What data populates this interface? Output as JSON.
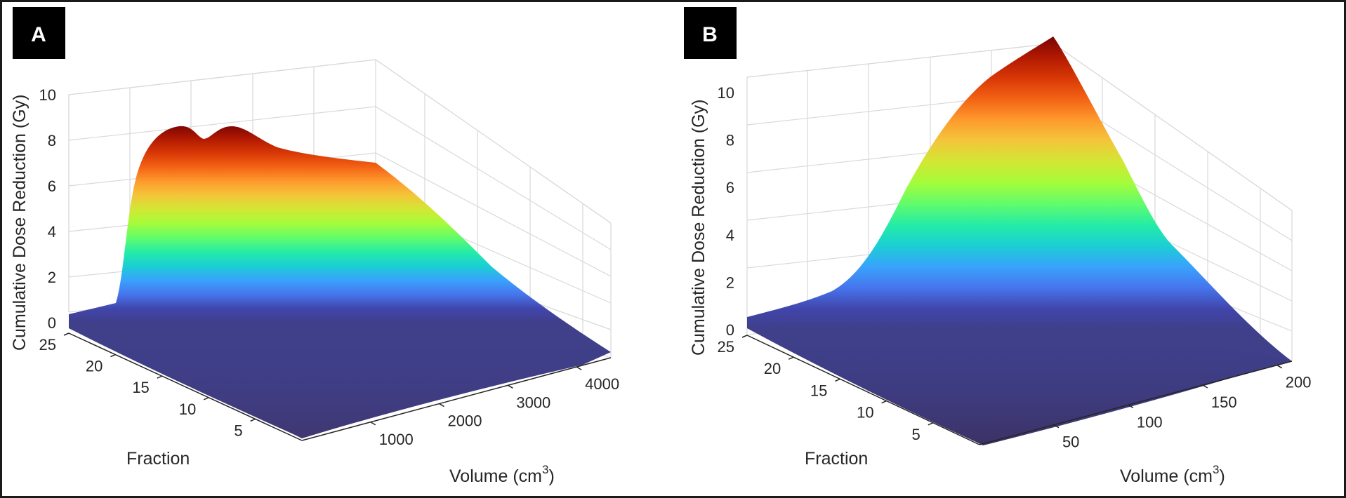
{
  "chart_data": [
    {
      "type": "surface",
      "panel_label": "A",
      "xlabel": "Volume (cm",
      "xlabel_sup": "3",
      "xlabel_close": ")",
      "ylabel": "Fraction",
      "zlabel": "Cumulative Dose Reduction (Gy)",
      "xlim": [
        0,
        4500
      ],
      "ylim": [
        0,
        25
      ],
      "zlim": [
        0,
        10
      ],
      "x_ticks": [
        1000,
        2000,
        3000,
        4000
      ],
      "y_ticks": [
        5,
        10,
        15,
        20,
        25
      ],
      "z_ticks": [
        0,
        2,
        4,
        6,
        8,
        10
      ],
      "x_tick_labels": [
        "1000",
        "2000",
        "3000",
        "4000"
      ],
      "y_tick_labels": [
        "5",
        "10",
        "15",
        "20",
        "25"
      ],
      "z_tick_labels": [
        "0",
        "2",
        "4",
        "6",
        "8",
        "10"
      ],
      "colormap": "turbo",
      "grid": true,
      "cumulative_dose_at_final_fraction": {
        "volume": [
          0,
          250,
          500,
          750,
          1000,
          1250,
          1500,
          1750,
          2000,
          2250,
          2500,
          2750,
          3000,
          3250,
          3500,
          3750,
          4000,
          4250,
          4500
        ],
        "dose": [
          0.5,
          0.6,
          8.3,
          7.9,
          8.3,
          7.8,
          7.4,
          7.3,
          7.2,
          6.0,
          4.8,
          3.8,
          2.8,
          2.0,
          1.3,
          0.8,
          0.5,
          0.3,
          0.2
        ]
      }
    },
    {
      "type": "surface",
      "panel_label": "B",
      "xlabel": "Volume (cm",
      "xlabel_sup": "3",
      "xlabel_close": ")",
      "ylabel": "Fraction",
      "zlabel": "Cumulative Dose Reduction (Gy)",
      "xlim": [
        0,
        210
      ],
      "ylim": [
        0,
        25
      ],
      "zlim": [
        0,
        10
      ],
      "x_ticks": [
        50,
        100,
        150,
        200
      ],
      "y_ticks": [
        5,
        10,
        15,
        20,
        25
      ],
      "z_ticks": [
        0,
        2,
        4,
        6,
        8,
        10
      ],
      "x_tick_labels": [
        "50",
        "100",
        "150",
        "200"
      ],
      "y_tick_labels": [
        "5",
        "10",
        "15",
        "20",
        "25"
      ],
      "z_tick_labels": [
        "0",
        "2",
        "4",
        "6",
        "8",
        "10"
      ],
      "colormap": "turbo",
      "grid": true,
      "cumulative_dose_at_final_fraction": {
        "volume": [
          0,
          15,
          30,
          45,
          60,
          75,
          90,
          105,
          120,
          135,
          150,
          165,
          180,
          195,
          210
        ],
        "dose": [
          0.5,
          0.8,
          1.1,
          2.5,
          5.0,
          7.6,
          9.2,
          10.0,
          11.0,
          8.0,
          5.0,
          2.4,
          1.0,
          0.5,
          0.2
        ]
      }
    }
  ]
}
